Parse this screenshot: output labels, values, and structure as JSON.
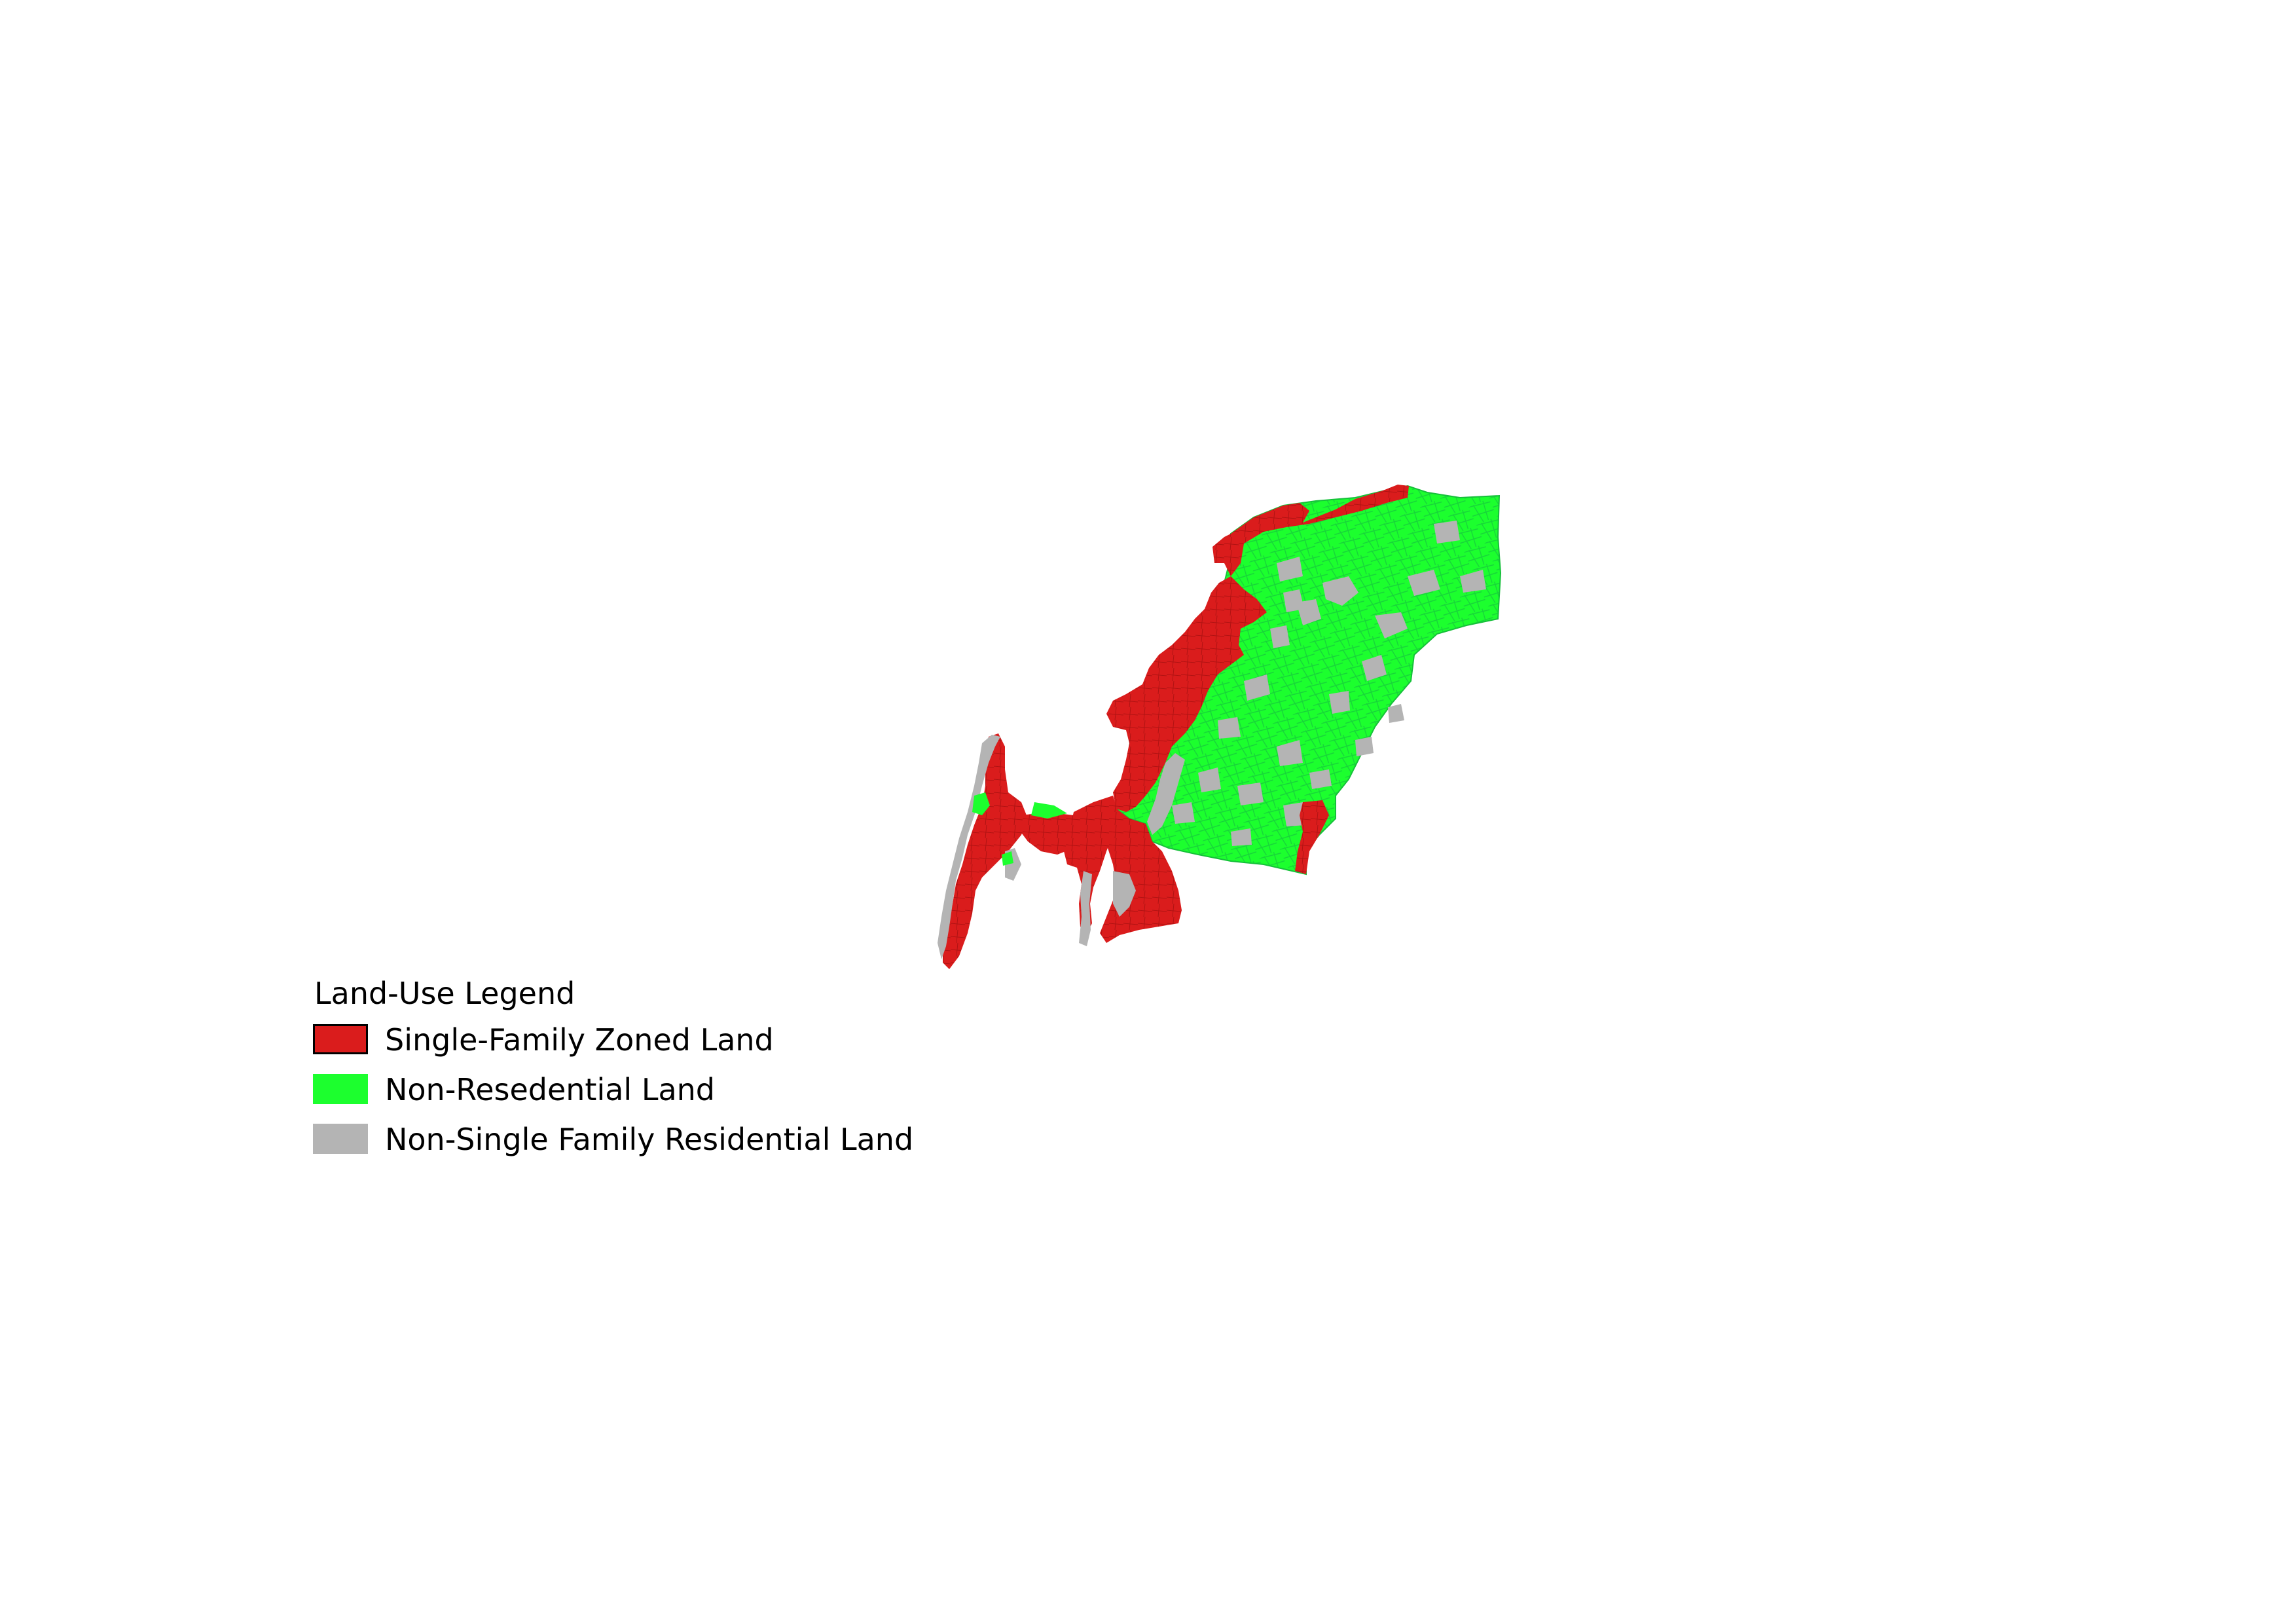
{
  "legend": {
    "title": "Land-Use Legend",
    "items": [
      {
        "label": "Single-Family Zoned Land",
        "color": "#da1c1c"
      },
      {
        "label": "Non-Resedential Land",
        "color": "#1cff2e"
      },
      {
        "label": "Non-Single Family Residential Land",
        "color": "#b4b4b4"
      }
    ]
  },
  "colors": {
    "background": "#ffffff",
    "parcel_outline": "#16c03a"
  }
}
